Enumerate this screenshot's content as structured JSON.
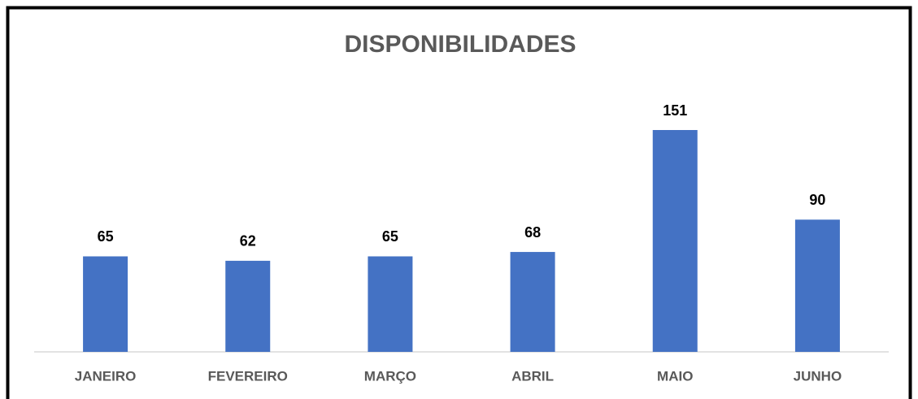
{
  "chart_data": {
    "type": "bar",
    "title": "DISPONIBILIDADES",
    "categories": [
      "JANEIRO",
      "FEVEREIRO",
      "MARÇO",
      "ABRIL",
      "MAIO",
      "JUNHO"
    ],
    "values": [
      65,
      62,
      65,
      68,
      151,
      90
    ],
    "color": "#4472c4"
  }
}
